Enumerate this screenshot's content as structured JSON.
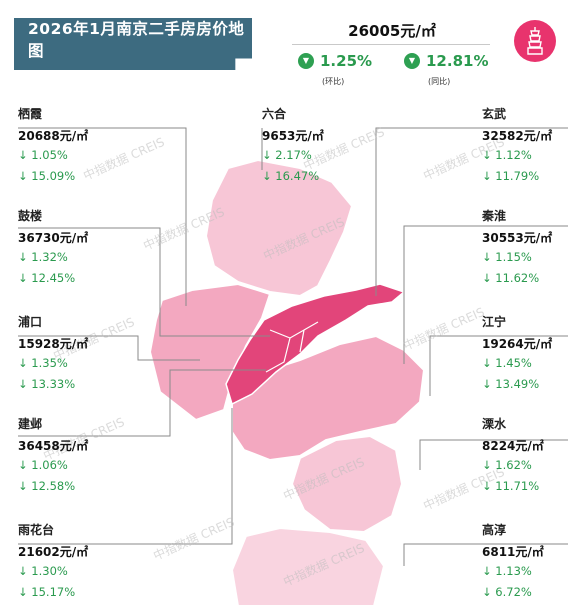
{
  "title": "2026年1月南京二手房房价地图",
  "summary": {
    "avg_price": "26005元/㎡",
    "mom_pct": "1.25%",
    "mom_label": "(环比)",
    "yoy_pct": "12.81%",
    "yoy_label": "(同比)"
  },
  "watermark": "中指数据 CREIS",
  "colors": {
    "banner": "#3d6b80",
    "down_green": "#2a9a4e",
    "logo": "#e8336d",
    "map_dark": "#e2457a",
    "map_light": "#f2a9c3"
  },
  "districts": [
    {
      "name": "栖霞",
      "price": "20688元/㎡",
      "mom": "↓ 1.05%",
      "yoy": "↓ 15.09%"
    },
    {
      "name": "鼓楼",
      "price": "36730元/㎡",
      "mom": "↓ 1.32%",
      "yoy": "↓ 12.45%"
    },
    {
      "name": "浦口",
      "price": "15928元/㎡",
      "mom": "↓ 1.35%",
      "yoy": "↓ 13.33%"
    },
    {
      "name": "建邺",
      "price": "36458元/㎡",
      "mom": "↓ 1.06%",
      "yoy": "↓ 12.58%"
    },
    {
      "name": "雨花台",
      "price": "21602元/㎡",
      "mom": "↓ 1.30%",
      "yoy": "↓ 15.17%"
    },
    {
      "name": "六合",
      "price": "9653元/㎡",
      "mom": "↓ 2.17%",
      "yoy": "↓ 16.47%"
    },
    {
      "name": "玄武",
      "price": "32582元/㎡",
      "mom": "↓ 1.12%",
      "yoy": "↓ 11.79%"
    },
    {
      "name": "秦淮",
      "price": "30553元/㎡",
      "mom": "↓ 1.15%",
      "yoy": "↓ 11.62%"
    },
    {
      "name": "江宁",
      "price": "19264元/㎡",
      "mom": "↓ 1.45%",
      "yoy": "↓ 13.49%"
    },
    {
      "name": "溧水",
      "price": "8224元/㎡",
      "mom": "↓ 1.62%",
      "yoy": "↓ 11.71%"
    },
    {
      "name": "高淳",
      "price": "6811元/㎡",
      "mom": "↓ 1.13%",
      "yoy": "↓ 6.72%"
    }
  ]
}
